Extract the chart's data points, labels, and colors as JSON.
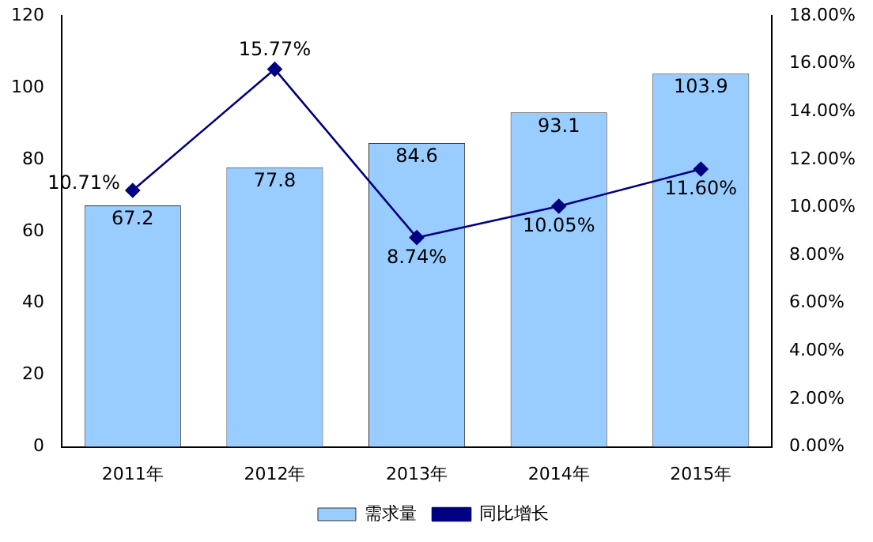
{
  "chart_data": {
    "type": "bar",
    "categories": [
      "2011年",
      "2012年",
      "2013年",
      "2014年",
      "2015年"
    ],
    "series": [
      {
        "name": "需求量",
        "color": "#99ccff",
        "values": [
          67.2,
          77.8,
          84.6,
          93.1,
          103.9
        ],
        "value_labels": [
          "67.2",
          "77.8",
          "84.6",
          "93.1",
          "103.9"
        ]
      },
      {
        "name": "同比增长",
        "type": "line",
        "axis": "y2",
        "color": "#000080",
        "marker": "diamond",
        "values": [
          10.71,
          15.77,
          8.74,
          10.05,
          11.6
        ],
        "value_labels": [
          "10.71%",
          "15.77%",
          "8.74%",
          "10.05%",
          "11.60%"
        ]
      }
    ],
    "ylim": [
      0,
      120
    ],
    "yticks": [
      0,
      20,
      40,
      60,
      80,
      100,
      120
    ],
    "y2lim": [
      0,
      18
    ],
    "y2ticks": [
      {
        "value": 0,
        "label": "0.00%"
      },
      {
        "value": 2,
        "label": "2.00%"
      },
      {
        "value": 4,
        "label": "4.00%"
      },
      {
        "value": 6,
        "label": "6.00%"
      },
      {
        "value": 8,
        "label": "8.00%"
      },
      {
        "value": 10,
        "label": "10.00%"
      },
      {
        "value": 12,
        "label": "12.00%"
      },
      {
        "value": 14,
        "label": "14.00%"
      },
      {
        "value": 16,
        "label": "16.00%"
      },
      {
        "value": 18,
        "label": "18.00%"
      }
    ],
    "grid": false,
    "legend": "bottom"
  }
}
